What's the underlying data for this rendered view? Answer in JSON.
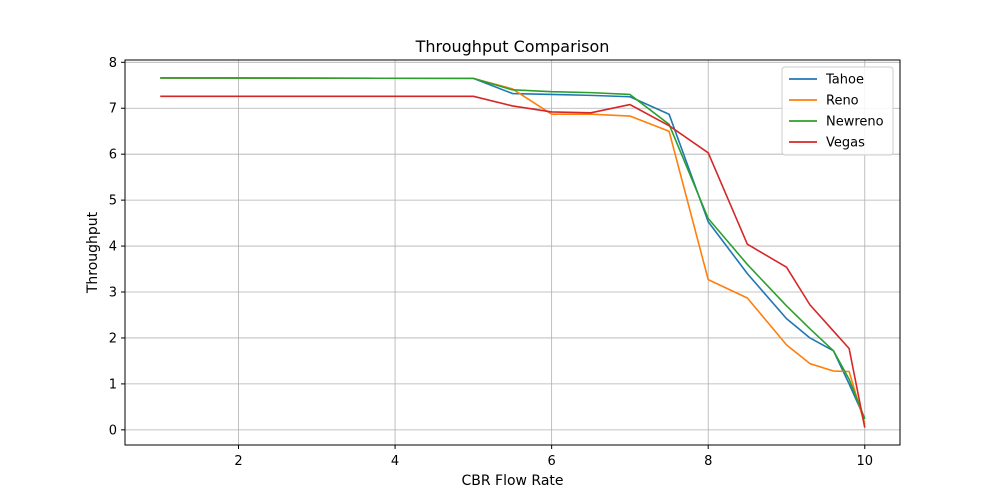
{
  "chart_data": {
    "type": "line",
    "title": "Throughput Comparison",
    "xlabel": "CBR Flow Rate",
    "ylabel": "Throughput",
    "xlim": [
      0.55,
      10.45
    ],
    "ylim": [
      -0.33,
      8.05
    ],
    "xticks": [
      2,
      4,
      6,
      8,
      10
    ],
    "yticks": [
      0,
      1,
      2,
      3,
      4,
      5,
      6,
      7,
      8
    ],
    "grid": true,
    "legend_position": "top-right",
    "x": [
      1,
      5,
      5.5,
      6,
      6.5,
      7,
      7.5,
      8,
      8.5,
      9,
      9.3,
      9.6,
      9.8,
      10
    ],
    "series": [
      {
        "name": "Tahoe",
        "color": "#1f77b4",
        "values": [
          7.66,
          7.65,
          7.32,
          7.3,
          7.28,
          7.25,
          6.87,
          4.53,
          3.4,
          2.42,
          2.0,
          1.72,
          1.0,
          0.24
        ]
      },
      {
        "name": "Reno",
        "color": "#ff7f0e",
        "values": [
          7.66,
          7.65,
          7.42,
          6.87,
          6.87,
          6.83,
          6.5,
          3.27,
          2.87,
          1.85,
          1.44,
          1.28,
          1.27,
          0.12
        ]
      },
      {
        "name": "Newreno",
        "color": "#2ca02c",
        "values": [
          7.66,
          7.65,
          7.4,
          7.36,
          7.34,
          7.3,
          6.65,
          4.6,
          3.6,
          2.7,
          2.2,
          1.72,
          1.1,
          0.24
        ]
      },
      {
        "name": "Vegas",
        "color": "#d62728",
        "values": [
          7.26,
          7.26,
          7.05,
          6.92,
          6.9,
          7.08,
          6.62,
          6.03,
          4.04,
          3.54,
          2.72,
          2.15,
          1.77,
          0.05
        ]
      }
    ]
  }
}
